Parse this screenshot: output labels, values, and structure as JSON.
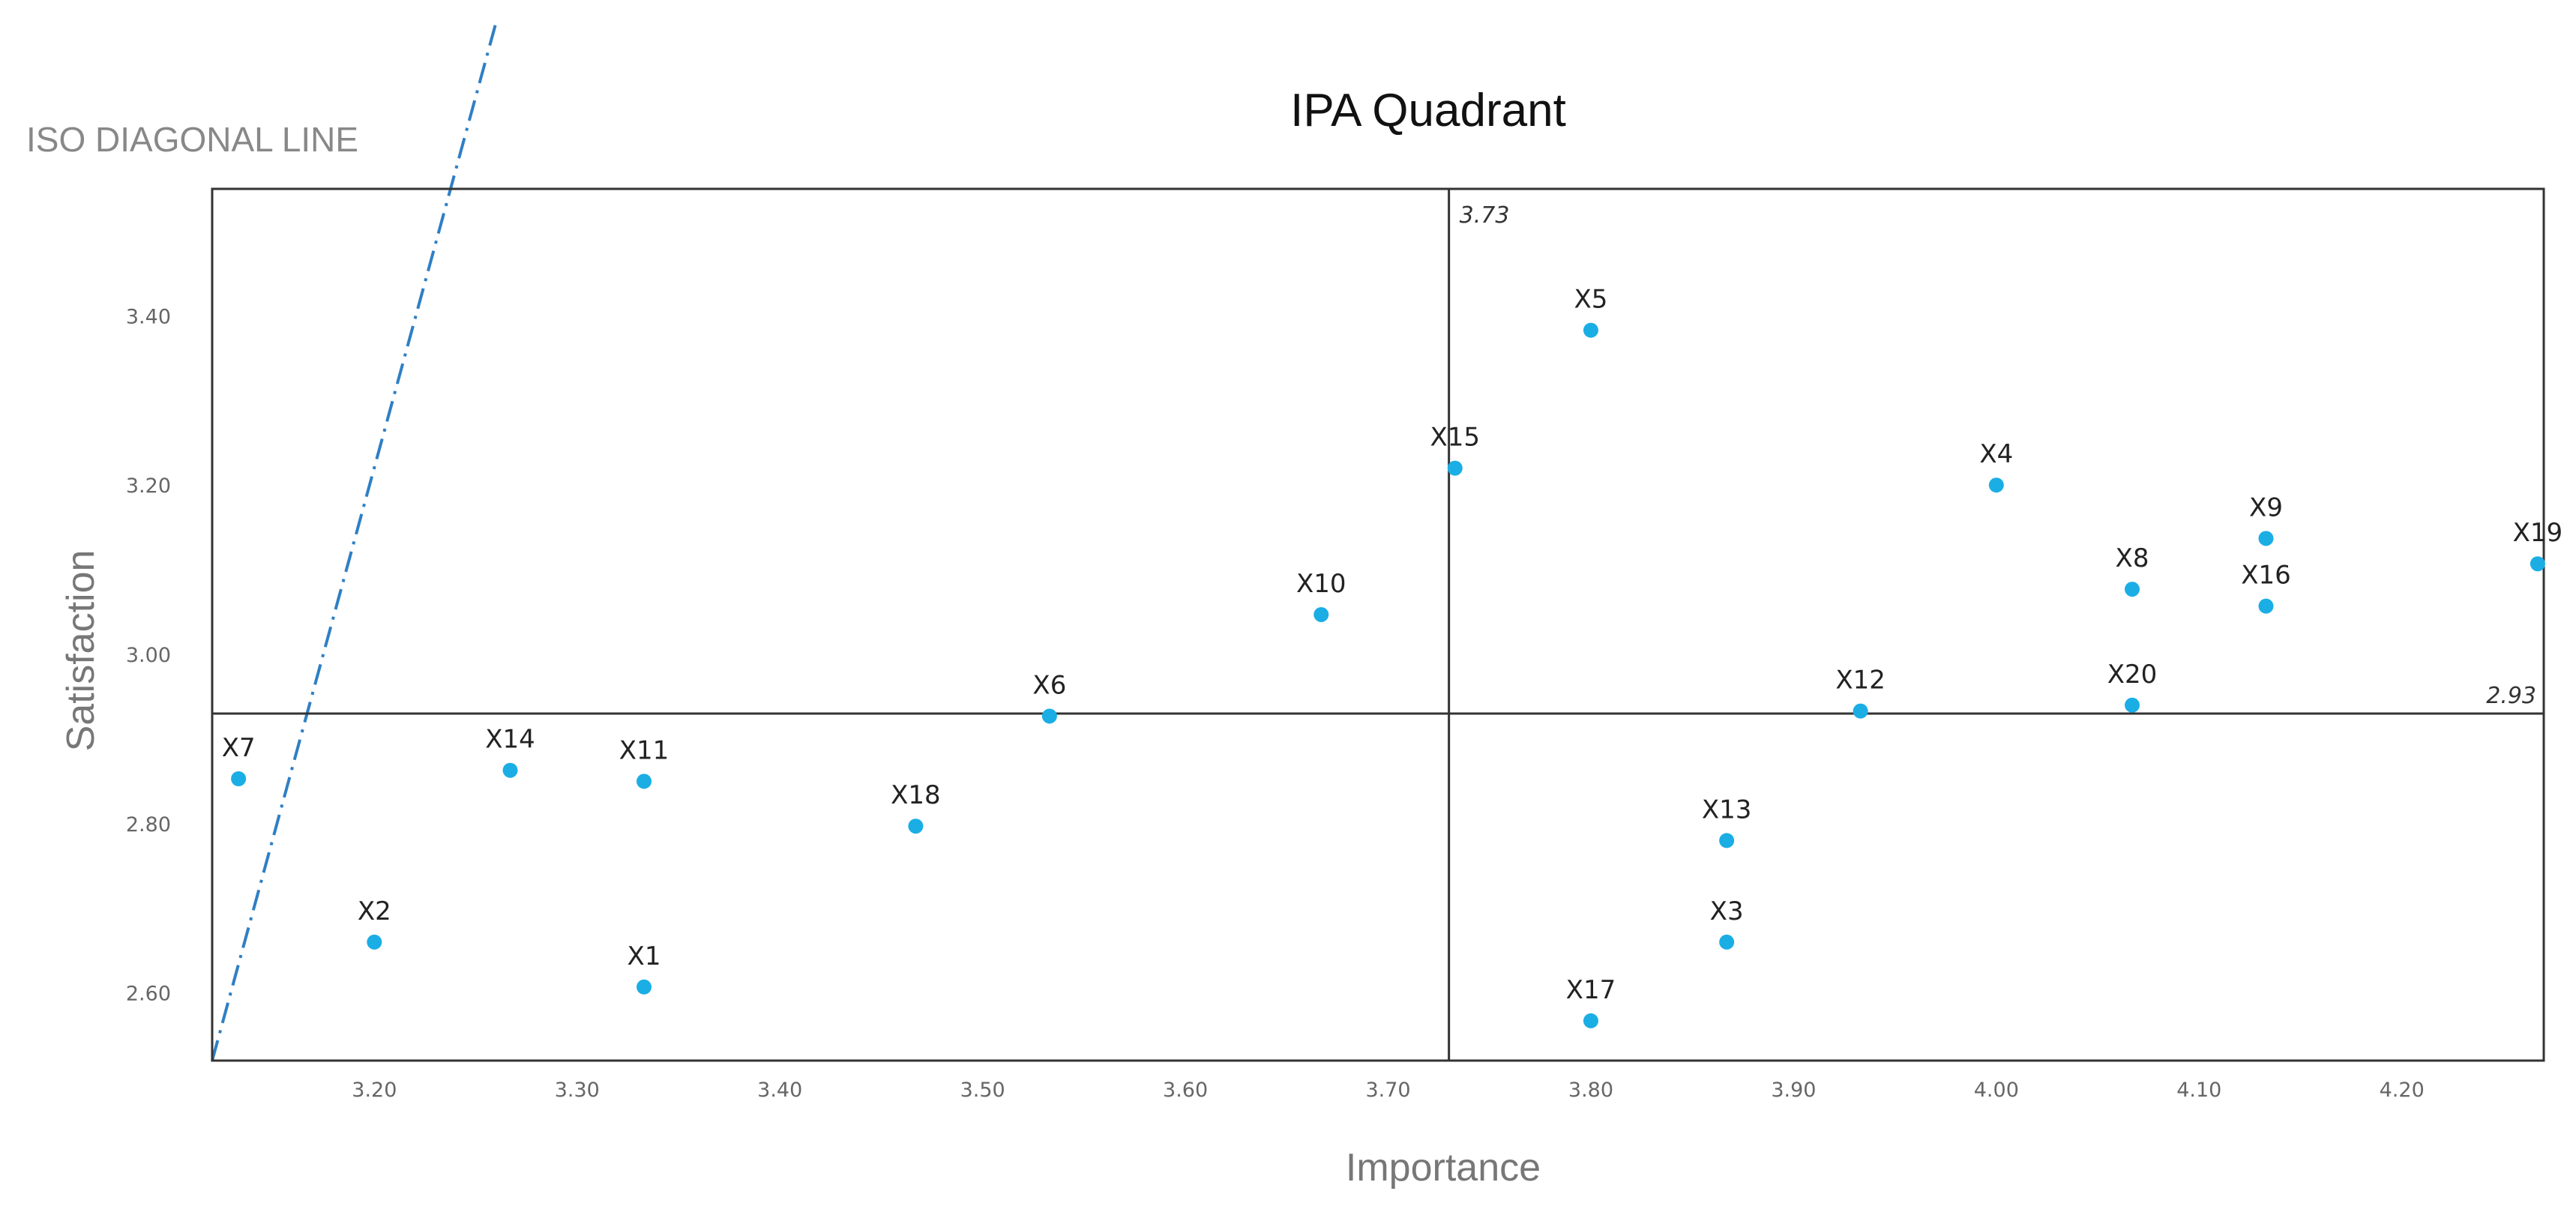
{
  "colors": {
    "point": "#1aaee5",
    "iso_line": "#2f7fc4",
    "frame": "#333333",
    "text": "#222222",
    "muted": "#777777"
  },
  "chart_data": {
    "type": "scatter",
    "title": "IPA Quadrant",
    "xlabel": "Importance",
    "ylabel": "Satisfaction",
    "xlim": [
      3.12,
      4.27
    ],
    "ylim": [
      2.52,
      3.55
    ],
    "x_ticks": [
      "3.20",
      "3.30",
      "3.40",
      "3.50",
      "3.60",
      "3.70",
      "3.80",
      "3.90",
      "4.00",
      "4.10",
      "4.20"
    ],
    "y_ticks": [
      "2.60",
      "2.80",
      "3.00",
      "3.20",
      "3.40"
    ],
    "grid": false,
    "reference_lines": {
      "x": 3.73,
      "y": 2.93,
      "x_label": "3.73",
      "y_label": "2.93"
    },
    "iso_line": {
      "label": "ISO DIAGONAL LINE",
      "style": "dash-dot"
    },
    "points": [
      {
        "label": "X1",
        "x": 3.333,
        "y": 2.607
      },
      {
        "label": "X2",
        "x": 3.2,
        "y": 2.66
      },
      {
        "label": "X3",
        "x": 3.867,
        "y": 2.66
      },
      {
        "label": "X4",
        "x": 4.0,
        "y": 3.2
      },
      {
        "label": "X5",
        "x": 3.8,
        "y": 3.383
      },
      {
        "label": "X6",
        "x": 3.533,
        "y": 2.927
      },
      {
        "label": "X7",
        "x": 3.133,
        "y": 2.853
      },
      {
        "label": "X8",
        "x": 4.067,
        "y": 3.077
      },
      {
        "label": "X9",
        "x": 4.133,
        "y": 3.137
      },
      {
        "label": "X10",
        "x": 3.667,
        "y": 3.047
      },
      {
        "label": "X11",
        "x": 3.333,
        "y": 2.85
      },
      {
        "label": "X12",
        "x": 3.933,
        "y": 2.933
      },
      {
        "label": "X13",
        "x": 3.867,
        "y": 2.78
      },
      {
        "label": "X14",
        "x": 3.267,
        "y": 2.863
      },
      {
        "label": "X15",
        "x": 3.733,
        "y": 3.22
      },
      {
        "label": "X16",
        "x": 4.133,
        "y": 3.057
      },
      {
        "label": "X17",
        "x": 3.8,
        "y": 2.567
      },
      {
        "label": "X18",
        "x": 3.467,
        "y": 2.797
      },
      {
        "label": "X19",
        "x": 4.267,
        "y": 3.107
      },
      {
        "label": "X20",
        "x": 4.067,
        "y": 2.94
      }
    ]
  }
}
